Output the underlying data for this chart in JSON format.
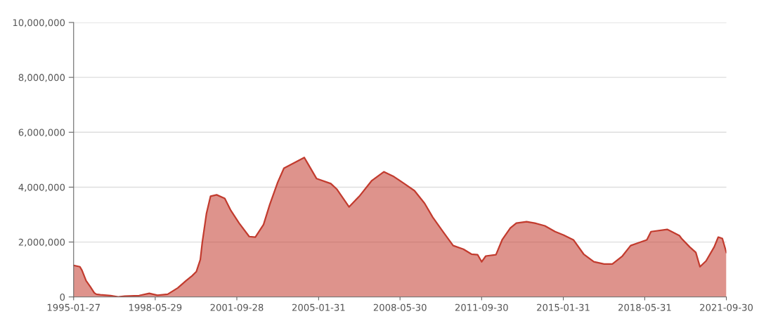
{
  "chart_data": {
    "type": "area",
    "grid": "y",
    "x": [
      "1995-01-27",
      "1995-05",
      "1995-06",
      "1995-08",
      "1995-10",
      "1995-12",
      "1996-01",
      "1996-03",
      "1996-08",
      "1996-12",
      "1997-03",
      "1997-10",
      "1998-03",
      "1998-07",
      "1998-12",
      "1999-05",
      "1999-09",
      "1999-12",
      "2000-02",
      "2000-04",
      "2000-05",
      "2000-07",
      "2000-09",
      "2000-12",
      "2001-04",
      "2001-07",
      "2001-11",
      "2002-04",
      "2002-07",
      "2002-11",
      "2003-02",
      "2003-06",
      "2003-09",
      "2004-07",
      "2004-09",
      "2005-01",
      "2005-08",
      "2005-11",
      "2006-05",
      "2006-10",
      "2007-04",
      "2007-10",
      "2008-03",
      "2008-08",
      "2009-01",
      "2009-06",
      "2009-10",
      "2010-03",
      "2010-08",
      "2011-01",
      "2011-05",
      "2011-08",
      "2011-10",
      "2011-12",
      "2012-05",
      "2012-08",
      "2012-12",
      "2013-03",
      "2013-08",
      "2013-12",
      "2014-05",
      "2014-10",
      "2015-02",
      "2015-07",
      "2015-12",
      "2016-05",
      "2016-10",
      "2017-02",
      "2017-07",
      "2017-11",
      "2018-02",
      "2018-07",
      "2018-09",
      "2019-05",
      "2019-11",
      "2019-12",
      "2020-04",
      "2020-07",
      "2020-09",
      "2020-12",
      "2021-04",
      "2021-06",
      "2021-08",
      "2021-09-30"
    ],
    "series": [
      {
        "color": "#c23b2e",
        "values": [
          1150000,
          1100000,
          970000,
          590000,
          380000,
          150000,
          100000,
          80000,
          50000,
          0,
          30000,
          50000,
          130000,
          60000,
          100000,
          330000,
          590000,
          770000,
          920000,
          1360000,
          2000000,
          3030000,
          3670000,
          3720000,
          3590000,
          3150000,
          2690000,
          2200000,
          2180000,
          2640000,
          3360000,
          4180000,
          4690000,
          5080000,
          4820000,
          4310000,
          4130000,
          3920000,
          3280000,
          3670000,
          4230000,
          4560000,
          4380000,
          4130000,
          3870000,
          3410000,
          2900000,
          2380000,
          1870000,
          1740000,
          1560000,
          1540000,
          1280000,
          1490000,
          1540000,
          2080000,
          2510000,
          2690000,
          2740000,
          2690000,
          2590000,
          2380000,
          2260000,
          2080000,
          1560000,
          1280000,
          1200000,
          1200000,
          1490000,
          1870000,
          1950000,
          2080000,
          2380000,
          2460000,
          2230000,
          2130000,
          1820000,
          1620000,
          1100000,
          1310000,
          1820000,
          2180000,
          2130000,
          1620000
        ]
      }
    ],
    "xlim": [
      "1995-01-27",
      "2021-09-30"
    ],
    "xticks": [
      "1995-01-27",
      "1998-05-29",
      "2001-09-28",
      "2005-01-31",
      "2008-05-30",
      "2011-09-30",
      "2015-01-31",
      "2018-05-31",
      "2021-09-30"
    ],
    "ylim": [
      0,
      10000000
    ],
    "yticks": [
      {
        "value": 0,
        "label": "0"
      },
      {
        "value": 2000000,
        "label": "2,000,000"
      },
      {
        "value": 4000000,
        "label": "4,000,000"
      },
      {
        "value": 6000000,
        "label": "6,000,000"
      },
      {
        "value": 8000000,
        "label": "8,000,000"
      },
      {
        "value": 10000000,
        "label": "10,000,000"
      }
    ]
  }
}
